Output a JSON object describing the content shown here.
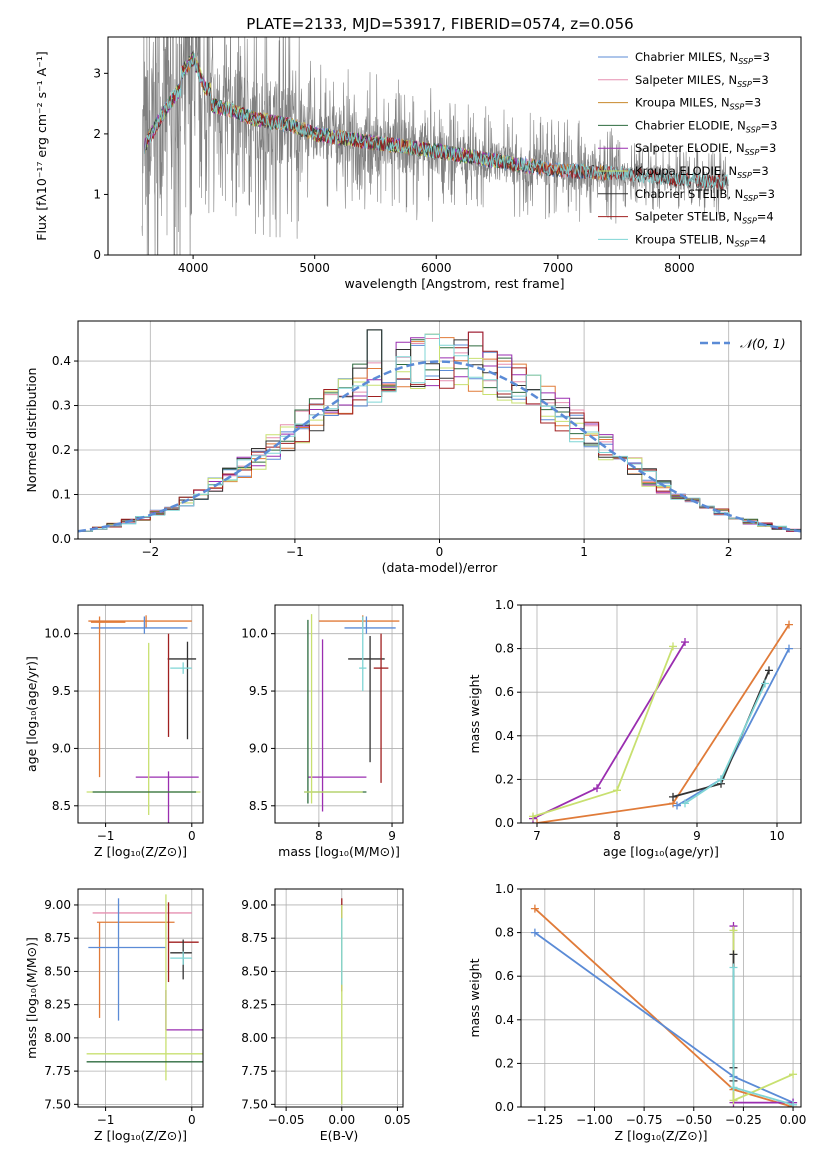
{
  "figure": {
    "title": "PLATE=2133, MJD=53917, FIBERID=0574, z=0.056"
  },
  "chart_data": [
    {
      "id": "spectrum",
      "type": "line",
      "xlabel": "wavelength [Angstrom, rest frame]",
      "ylabel": "Flux [fλ10⁻¹⁷ erg cm⁻² s⁻¹ A⁻¹]",
      "xlim": [
        3300,
        9000
      ],
      "ylim": [
        0,
        3.6
      ],
      "xticks": [
        4000,
        5000,
        6000,
        7000,
        8000
      ],
      "yticks": [
        0,
        1,
        2,
        3
      ],
      "grid": false,
      "legend_position": "top-right",
      "data_color": "#808080",
      "data_x_range": [
        3580,
        8400
      ],
      "continuum": {
        "x": [
          3600,
          3800,
          4000,
          4100,
          4300,
          4500,
          4800,
          5000,
          5500,
          6000,
          6500,
          7000,
          7500,
          8000,
          8400
        ],
        "y": [
          1.8,
          2.5,
          3.0,
          2.5,
          2.4,
          2.25,
          2.15,
          2.0,
          1.85,
          1.72,
          1.55,
          1.4,
          1.35,
          1.25,
          1.2
        ]
      },
      "series": [
        {
          "name": "Chabrier MILES, N",
          "sub": "SSP",
          "suffix": "=3",
          "color": "#5b8bd6",
          "x_end": 7450
        },
        {
          "name": "Salpeter MILES, N",
          "sub": "SSP",
          "suffix": "=3",
          "color": "#e58fb0",
          "x_end": 7450
        },
        {
          "name": "Kroupa MILES, N",
          "sub": "SSP",
          "suffix": "=3",
          "color": "#c8882c",
          "x_end": 7450
        },
        {
          "name": "Chabrier ELODIE, N",
          "sub": "SSP",
          "suffix": "=3",
          "color": "#2e6b3f",
          "x_end": 6800
        },
        {
          "name": "Salpeter ELODIE, N",
          "sub": "SSP",
          "suffix": "=3",
          "color": "#9a2eb0",
          "x_end": 6800
        },
        {
          "name": "Kroupa ELODIE, N",
          "sub": "SSP",
          "suffix": "=3",
          "color": "#c8e070",
          "x_end": 6800
        },
        {
          "name": "Chabrier STELIB, N",
          "sub": "SSP",
          "suffix": "=3",
          "color": "#333333",
          "x_end": 8400
        },
        {
          "name": "Salpeter STELIB, N",
          "sub": "SSP",
          "suffix": "=4",
          "color": "#a02020",
          "x_end": 8400
        },
        {
          "name": "Kroupa STELIB, N",
          "sub": "SSP",
          "suffix": "=4",
          "color": "#7fd5d5",
          "x_end": 8400
        }
      ]
    },
    {
      "id": "residuals",
      "type": "line",
      "xlabel": "(data-model)/error",
      "ylabel": "Normed distribution",
      "xlim": [
        -2.5,
        2.5
      ],
      "ylim": [
        0,
        0.49
      ],
      "xticks": [
        -2,
        -1,
        0,
        1,
        2
      ],
      "xtick_labels": [
        "−2",
        "−1",
        "0",
        "1",
        "2"
      ],
      "yticks": [
        0.0,
        0.1,
        0.2,
        0.3,
        0.4
      ],
      "ytick_labels": [
        "0.0",
        "0.1",
        "0.2",
        "0.3",
        "0.4"
      ],
      "grid": true,
      "legend_position": "top-right",
      "gaussian": {
        "label": "𝒩(0, 1)",
        "color": "#5b8bd6",
        "mean": 0,
        "sigma": 1
      },
      "bin_width": 0.1,
      "colors": [
        "#5b8bd6",
        "#e58fb0",
        "#e07b39",
        "#2e6b3f",
        "#9a2eb0",
        "#c8e070",
        "#333333",
        "#a02020",
        "#7fd5d5"
      ],
      "peaks": [
        {
          "x": -0.45,
          "y": 0.47
        },
        {
          "x": 0.25,
          "y": 0.465
        },
        {
          "x": -0.05,
          "y": 0.46
        }
      ]
    },
    {
      "id": "age-vs-Z",
      "type": "scatter",
      "xlabel": "Z [log₁₀(Z/Z⊙)]",
      "ylabel": "age  [log₁₀(age/yr)]",
      "xlim": [
        -1.32,
        0.13
      ],
      "ylim": [
        8.35,
        10.25
      ],
      "xticks": [
        -1,
        0
      ],
      "xtick_labels": [
        "−1",
        "0"
      ],
      "yticks": [
        8.5,
        9.0,
        9.5,
        10.0
      ],
      "ytick_labels": [
        "8.5",
        "9.0",
        "9.5",
        "10.0"
      ],
      "grid": true,
      "points": [
        {
          "x": -0.53,
          "y": 10.11,
          "xerr": [
            0.67,
            0.53
          ],
          "yerr": [
            0.06,
            0.05
          ],
          "color": "#e07b39"
        },
        {
          "x": -0.55,
          "y": 10.05,
          "xerr": [
            0.62,
            0.5
          ],
          "yerr": [
            0.05,
            0.1
          ],
          "color": "#5b8bd6"
        },
        {
          "x": -1.07,
          "y": 10.1,
          "xerr": [
            0.1,
            0.3
          ],
          "yerr": [
            1.35,
            0.05
          ],
          "color": "#e07b39"
        },
        {
          "x": -0.05,
          "y": 9.78,
          "xerr": [
            0.23,
            0.1
          ],
          "yerr": [
            0.7,
            0.15
          ],
          "color": "#333333"
        },
        {
          "x": -0.27,
          "y": 9.85,
          "xerr": [
            0.0,
            0.0
          ],
          "yerr": [
            0.75,
            0.15
          ],
          "color": "#a02020"
        },
        {
          "x": -0.1,
          "y": 9.7,
          "xerr": [
            0.15,
            0.1
          ],
          "yerr": [
            0.05,
            0.05
          ],
          "color": "#7fd5d5"
        },
        {
          "x": -0.27,
          "y": 8.75,
          "xerr": [
            0.38,
            0.35
          ],
          "yerr": [
            1.2,
            0.05
          ],
          "color": "#9a2eb0"
        },
        {
          "x": -0.5,
          "y": 8.62,
          "xerr": [
            0.72,
            0.6
          ],
          "yerr": [
            0.2,
            1.3
          ],
          "color": "#c8e070"
        },
        {
          "x": -0.25,
          "y": 8.62,
          "xerr": [
            0.9,
            0.3
          ],
          "yerr": [
            0.0,
            0.0
          ],
          "color": "#2e6b3f"
        }
      ]
    },
    {
      "id": "age-vs-mass",
      "type": "scatter",
      "xlabel": "mass [log₁₀(M/M⊙)]",
      "ylabel": "",
      "xlim": [
        7.4,
        9.15
      ],
      "ylim": [
        8.35,
        10.25
      ],
      "xticks": [
        8,
        9
      ],
      "yticks": [
        8.5,
        9.0,
        9.5,
        10.0
      ],
      "ytick_labels": [
        "8.5",
        "9.0",
        "9.5",
        "10.0"
      ],
      "grid": true,
      "points": [
        {
          "x": 8.6,
          "y": 10.11,
          "xerr": [
            0.6,
            0.5
          ],
          "yerr": [
            0.05,
            0.05
          ],
          "color": "#e07b39"
        },
        {
          "x": 8.65,
          "y": 10.05,
          "xerr": [
            0.3,
            0.4
          ],
          "yerr": [
            0.05,
            0.1
          ],
          "color": "#5b8bd6"
        },
        {
          "x": 8.7,
          "y": 9.78,
          "xerr": [
            0.3,
            0.2
          ],
          "yerr": [
            0.9,
            0.2
          ],
          "color": "#333333"
        },
        {
          "x": 8.85,
          "y": 9.7,
          "xerr": [
            0.1,
            0.1
          ],
          "yerr": [
            1.0,
            0.3
          ],
          "color": "#a02020"
        },
        {
          "x": 8.6,
          "y": 9.7,
          "xerr": [
            0.05,
            0.05
          ],
          "yerr": [
            0.2,
            0.45
          ],
          "color": "#7fd5d5"
        },
        {
          "x": 8.05,
          "y": 8.75,
          "xerr": [
            0.2,
            0.6
          ],
          "yerr": [
            0.3,
            1.2
          ],
          "color": "#9a2eb0"
        },
        {
          "x": 7.85,
          "y": 8.62,
          "xerr": [
            0.05,
            0.8
          ],
          "yerr": [
            0.1,
            1.5
          ],
          "color": "#2e6b3f"
        },
        {
          "x": 7.9,
          "y": 8.62,
          "xerr": [
            0.1,
            0.7
          ],
          "yerr": [
            0.1,
            1.55
          ],
          "color": "#c8e070"
        }
      ]
    },
    {
      "id": "massweight-vs-age",
      "type": "line",
      "xlabel": "age  [log₁₀(age/yr)]",
      "ylabel": "mass weight",
      "xlim": [
        6.8,
        10.3
      ],
      "ylim": [
        0,
        1.0
      ],
      "xticks": [
        7,
        8,
        9,
        10
      ],
      "yticks": [
        0.0,
        0.2,
        0.4,
        0.6,
        0.8,
        1.0
      ],
      "ytick_labels": [
        "0.0",
        "0.2",
        "0.4",
        "0.6",
        "0.8",
        "1.0"
      ],
      "grid": true,
      "series": [
        {
          "color": "#9a2eb0",
          "x": [
            6.95,
            7.75,
            8.85
          ],
          "y": [
            0.02,
            0.16,
            0.83
          ]
        },
        {
          "color": "#c8e070",
          "x": [
            6.95,
            8.0,
            8.7
          ],
          "y": [
            0.03,
            0.15,
            0.81
          ]
        },
        {
          "color": "#e07b39",
          "x": [
            7.0,
            8.7,
            10.15
          ],
          "y": [
            0.0,
            0.09,
            0.91
          ]
        },
        {
          "color": "#5b8bd6",
          "x": [
            8.75,
            9.3,
            10.15
          ],
          "y": [
            0.08,
            0.2,
            0.8
          ]
        },
        {
          "color": "#333333",
          "x": [
            8.7,
            9.3,
            9.9
          ],
          "y": [
            0.12,
            0.18,
            0.7
          ]
        },
        {
          "color": "#7fd5d5",
          "x": [
            8.85,
            9.3,
            9.85
          ],
          "y": [
            0.09,
            0.2,
            0.64
          ]
        }
      ]
    },
    {
      "id": "mass-vs-Z",
      "type": "scatter",
      "xlabel": "Z [log₁₀(Z/Z⊙)]",
      "ylabel": "mass [log₁₀(M/M⊙)]",
      "xlim": [
        -1.32,
        0.13
      ],
      "ylim": [
        7.48,
        9.12
      ],
      "xticks": [
        -1,
        0
      ],
      "xtick_labels": [
        "−1",
        "0"
      ],
      "yticks": [
        7.5,
        7.75,
        8.0,
        8.25,
        8.5,
        8.75,
        9.0
      ],
      "ytick_labels": [
        "7.50",
        "7.75",
        "8.00",
        "8.25",
        "8.50",
        "8.75",
        "9.00"
      ],
      "grid": true,
      "points": [
        {
          "x": -0.65,
          "y": 8.94,
          "xerr": [
            0.5,
            0.65
          ],
          "yerr": [
            0.0,
            0.0
          ],
          "color": "#e58fb0"
        },
        {
          "x": -0.65,
          "y": 8.87,
          "xerr": [
            0.45,
            0.45
          ],
          "yerr": [
            0.0,
            0.0
          ],
          "color": "#e07b39"
        },
        {
          "x": -1.07,
          "y": 8.87,
          "xerr": [
            0.0,
            0.0
          ],
          "yerr": [
            0.72,
            0.0
          ],
          "color": "#e07b39"
        },
        {
          "x": -0.85,
          "y": 8.68,
          "xerr": [
            0.35,
            0.55
          ],
          "yerr": [
            0.55,
            0.37
          ],
          "color": "#5b8bd6"
        },
        {
          "x": -0.27,
          "y": 8.72,
          "xerr": [
            0.0,
            0.35
          ],
          "yerr": [
            0.3,
            0.3
          ],
          "color": "#a02020"
        },
        {
          "x": -0.1,
          "y": 8.64,
          "xerr": [
            0.15,
            0.1
          ],
          "yerr": [
            0.2,
            0.1
          ],
          "color": "#333333"
        },
        {
          "x": -0.1,
          "y": 8.6,
          "xerr": [
            0.15,
            0.1
          ],
          "yerr": [
            0.05,
            0.05
          ],
          "color": "#7fd5d5"
        },
        {
          "x": -0.3,
          "y": 8.06,
          "xerr": [
            0.0,
            0.45
          ],
          "yerr": [
            0.0,
            0.3
          ],
          "color": "#9a2eb0"
        },
        {
          "x": -0.3,
          "y": 7.88,
          "xerr": [
            0.92,
            0.45
          ],
          "yerr": [
            0.2,
            1.2
          ],
          "color": "#c8e070"
        },
        {
          "x": -0.3,
          "y": 7.82,
          "xerr": [
            0.92,
            0.45
          ],
          "yerr": [
            0.0,
            0.0
          ],
          "color": "#2e6b3f"
        }
      ]
    },
    {
      "id": "mass-vs-EBV",
      "type": "scatter",
      "xlabel": "E(B-V)",
      "ylabel": "",
      "xlim": [
        -0.06,
        0.055
      ],
      "ylim": [
        7.48,
        9.12
      ],
      "xticks": [
        -0.05,
        0.0,
        0.05
      ],
      "xtick_labels": [
        "−0.05",
        "0.00",
        "0.05"
      ],
      "yticks": [
        7.5,
        7.75,
        8.0,
        8.25,
        8.5,
        8.75,
        9.0
      ],
      "ytick_labels": [
        "7.50",
        "7.75",
        "8.00",
        "8.25",
        "8.50",
        "8.75",
        "9.00"
      ],
      "grid": true,
      "points": [
        {
          "x": 0.0,
          "y": 8.7,
          "xerr": [
            0.0,
            0.0
          ],
          "yerr": [
            0.35,
            0.35
          ],
          "color": "#a02020"
        },
        {
          "x": 0.0,
          "y": 8.5,
          "xerr": [
            0.0,
            0.0
          ],
          "yerr": [
            1.0,
            0.5
          ],
          "color": "#c8e070"
        },
        {
          "x": 0.0,
          "y": 8.6,
          "xerr": [
            0.0,
            0.0
          ],
          "yerr": [
            0.2,
            0.3
          ],
          "color": "#7fd5d5"
        }
      ]
    },
    {
      "id": "massweight-vs-Z",
      "type": "line",
      "xlabel": "Z [log₁₀(Z/Z⊙)]",
      "ylabel": "mass weight",
      "xlim": [
        -1.37,
        0.04
      ],
      "ylim": [
        0,
        1.0
      ],
      "xticks": [
        -1.25,
        -1.0,
        -0.75,
        -0.5,
        -0.25,
        0.0
      ],
      "xtick_labels": [
        "−1.25",
        "−1.00",
        "−0.75",
        "−0.50",
        "−0.25",
        "0.00"
      ],
      "yticks": [
        0.0,
        0.2,
        0.4,
        0.6,
        0.8,
        1.0
      ],
      "ytick_labels": [
        "0.0",
        "0.2",
        "0.4",
        "0.6",
        "0.8",
        "1.0"
      ],
      "grid": true,
      "series": [
        {
          "color": "#e07b39",
          "x": [
            -1.3,
            -0.3,
            0.0
          ],
          "y": [
            0.91,
            0.08,
            0.0
          ]
        },
        {
          "color": "#5b8bd6",
          "x": [
            -1.3,
            -0.3,
            0.0
          ],
          "y": [
            0.8,
            0.14,
            0.02
          ]
        },
        {
          "color": "#9a2eb0",
          "x": [
            -0.3,
            -0.3,
            0.0
          ],
          "y": [
            0.83,
            0.02,
            0.02
          ]
        },
        {
          "color": "#c8e070",
          "x": [
            -0.3,
            -0.3,
            0.0
          ],
          "y": [
            0.81,
            0.03,
            0.15
          ]
        },
        {
          "color": "#333333",
          "x": [
            -0.3,
            -0.3,
            -0.3
          ],
          "y": [
            0.7,
            0.18,
            0.12
          ]
        },
        {
          "color": "#7fd5d5",
          "x": [
            -0.3,
            -0.3,
            0.0
          ],
          "y": [
            0.64,
            0.09,
            0.01
          ]
        }
      ]
    }
  ]
}
